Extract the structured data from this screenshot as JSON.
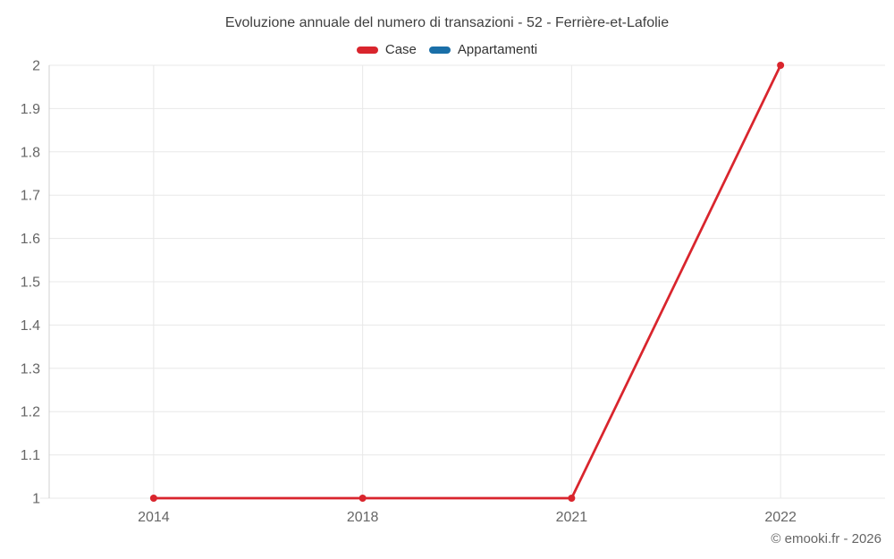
{
  "chart_data": {
    "type": "line",
    "title": "Evoluzione annuale del numero di transazioni - 52 - Ferrière-et-Lafolie",
    "categories": [
      "2014",
      "2018",
      "2021",
      "2022"
    ],
    "series": [
      {
        "name": "Case",
        "color": "#d9252d",
        "values": [
          1,
          1,
          1,
          2
        ]
      },
      {
        "name": "Appartamenti",
        "color": "#1a6fa8",
        "values": []
      }
    ],
    "xlabel": "",
    "ylabel": "",
    "ylim": [
      1,
      2
    ],
    "ytick_step": 0.1,
    "y_tick_labels": [
      "1",
      "1.1",
      "1.2",
      "1.3",
      "1.4",
      "1.5",
      "1.6",
      "1.7",
      "1.8",
      "1.9",
      "2"
    ],
    "grid": true,
    "legend_position": "top",
    "credits": "© emooki.fr - 2026"
  },
  "styles": {
    "grid_color": "#e8e8e8",
    "axis_color": "#d0d0d0",
    "label_color": "#666666",
    "title_color": "#3f3f3f",
    "label_font_size": 16
  }
}
